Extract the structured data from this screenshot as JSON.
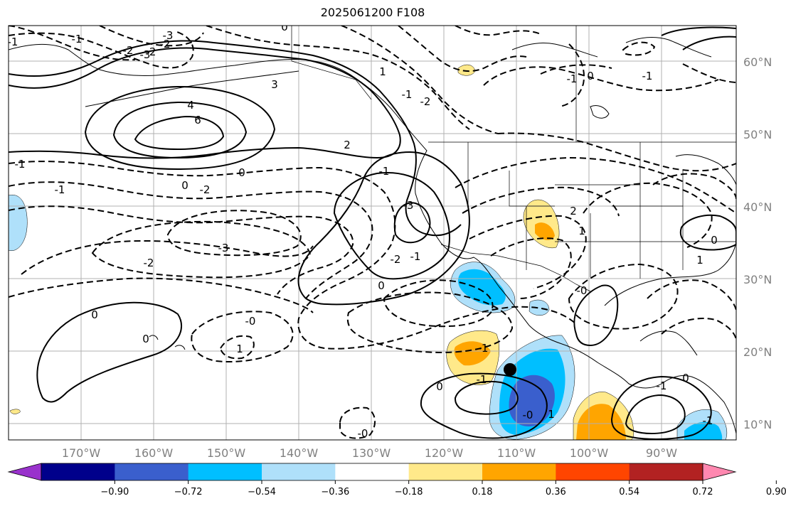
{
  "title": "2025061200 F108",
  "map": {
    "projection": "cylindrical",
    "lon_range": [
      -180,
      -80
    ],
    "lat_range": [
      8,
      65
    ],
    "gridlines": true,
    "lat_labels": [
      "60°N",
      "50°N",
      "40°N",
      "30°N",
      "20°N",
      "10°N"
    ],
    "lon_labels": [
      "170°W",
      "160°W",
      "150°W",
      "140°W",
      "130°W",
      "120°W",
      "110°W",
      "100°W",
      "90°W"
    ],
    "marker": {
      "lon": -110,
      "lat": 18,
      "name": "storm-center"
    }
  },
  "contour_labels": [
    "-3",
    "-2",
    "-3",
    "0",
    "-1",
    "-2",
    "-2",
    "-1",
    "3",
    "4",
    "6",
    "2",
    "0",
    "-1",
    "-2",
    "-3",
    "-2",
    "0",
    "-1",
    "1",
    "-1",
    "-2",
    "-1",
    "-3",
    "-1",
    "-2",
    "2",
    "1",
    "0",
    "-1",
    "0",
    "-0",
    "0",
    "1",
    "-1",
    "0",
    "-1",
    "-0",
    "0",
    "1",
    "-0",
    "1",
    "-1",
    "0",
    "-1",
    "-0",
    "0",
    "-1"
  ],
  "colorbar": {
    "ticks": [
      "−0.90",
      "−0.72",
      "−0.54",
      "−0.36",
      "−0.18",
      "0.18",
      "0.36",
      "0.54",
      "0.72",
      "0.90"
    ],
    "colors": [
      "#9932cc",
      "#00008b",
      "#3a5fcd",
      "#00bfff",
      "#afe0fa",
      "#ffffff",
      "#ffe98a",
      "#ffa500",
      "#ff4500",
      "#b22222",
      "#ff88b0"
    ],
    "extend": "both"
  },
  "colors": {
    "contour": "#000000",
    "grid": "#b0b0b0",
    "coast": "#000000",
    "label": "#808080"
  }
}
